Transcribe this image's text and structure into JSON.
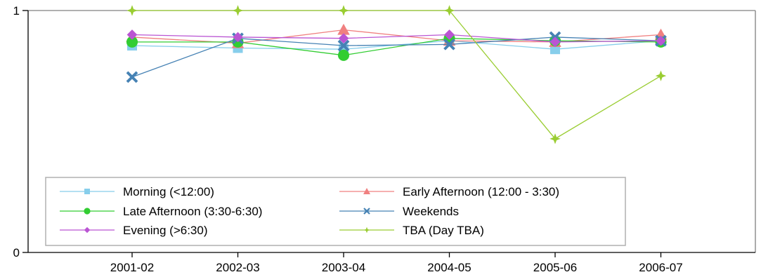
{
  "chart_data": {
    "type": "line",
    "categories": [
      "2001-02",
      "2002-03",
      "2003-04",
      "2004-05",
      "2005-06",
      "2006-07"
    ],
    "ylim": [
      0,
      1
    ],
    "y_ticks": [
      "0",
      "1"
    ],
    "grid": false,
    "legend_position": "bottom-left",
    "series": [
      {
        "name": "Morning (<12:00)",
        "color": "#87CEEB",
        "marker": "square",
        "values": [
          0.855,
          0.845,
          0.84,
          0.875,
          0.84,
          0.875
        ]
      },
      {
        "name": "Early Afternoon (12:00 - 3:30)",
        "color": "#F08080",
        "marker": "triangle",
        "values": [
          0.89,
          0.865,
          0.92,
          0.875,
          0.87,
          0.9
        ]
      },
      {
        "name": "Late Afternoon (3:30-6:30)",
        "color": "#32CD32",
        "marker": "circle",
        "values": [
          0.87,
          0.87,
          0.815,
          0.885,
          0.875,
          0.87
        ]
      },
      {
        "name": "Weekends",
        "color": "#4682B4",
        "marker": "x",
        "values": [
          0.725,
          0.885,
          0.855,
          0.86,
          0.89,
          0.875
        ]
      },
      {
        "name": "Evening (>6:30)",
        "color": "#BA55D3",
        "marker": "diamond",
        "values": [
          0.9,
          0.89,
          0.885,
          0.9,
          0.87,
          0.875
        ]
      },
      {
        "name": "TBA (Day TBA)",
        "color": "#9ACD32",
        "marker": "plus",
        "values": [
          1,
          1,
          1,
          1,
          0.47,
          0.73
        ]
      }
    ]
  }
}
